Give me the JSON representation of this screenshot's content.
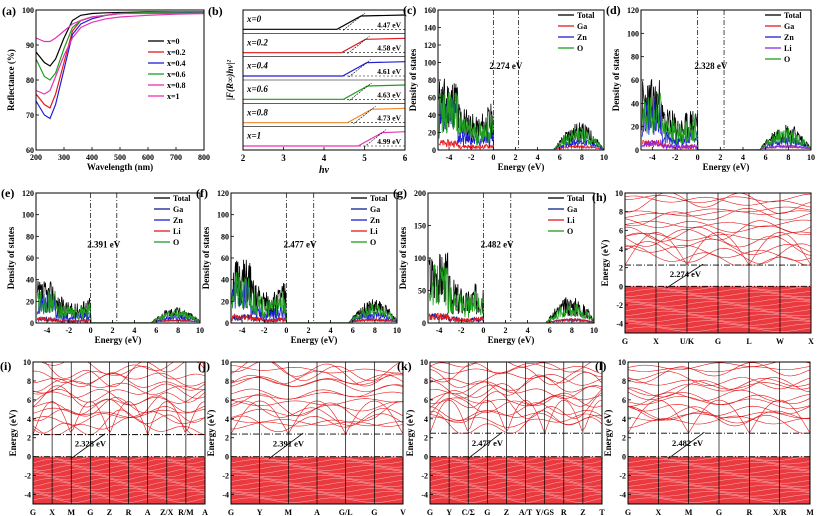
{
  "colors": {
    "black": "#000000",
    "red": "#e41a1c",
    "blue": "#1f1fd6",
    "green": "#1f9e1f",
    "purple": "#8a2be2",
    "magenta": "#e633b5",
    "orange": "#f28c28",
    "navy": "#0b1f8f",
    "gap": "#000000"
  },
  "chart_data": [
    {
      "panel": "a",
      "label": "(a)",
      "type": "line",
      "xlabel": "Wavelength (nm)",
      "ylabel": "Reflectance (%)",
      "xlim": [
        200,
        800
      ],
      "ylim": [
        60,
        100
      ],
      "xticks": [
        200,
        300,
        400,
        500,
        600,
        700,
        800
      ],
      "yticks": [
        60,
        70,
        80,
        90,
        100
      ],
      "x": [
        200,
        230,
        250,
        270,
        300,
        330,
        360,
        400,
        450,
        500,
        600,
        700,
        800
      ],
      "series": [
        {
          "name": "x=0",
          "color": "black",
          "values": [
            88,
            85,
            84,
            86,
            92,
            97,
            98.5,
            99,
            99.2,
            99.3,
            99.5,
            99.5,
            99.5
          ]
        },
        {
          "name": "x=0.2",
          "color": "red",
          "values": [
            76,
            73,
            72,
            76,
            85,
            94,
            97,
            98,
            98.5,
            99,
            99.2,
            99.3,
            99.4
          ]
        },
        {
          "name": "x=0.4",
          "color": "blue",
          "values": [
            74,
            70,
            69,
            73,
            83,
            93,
            96,
            97.5,
            98.5,
            99,
            99.2,
            99.3,
            99.4
          ]
        },
        {
          "name": "x=0.6",
          "color": "green",
          "values": [
            86,
            81,
            80,
            82,
            89,
            95,
            97,
            98,
            98.5,
            99,
            99.3,
            99.4,
            99.5
          ]
        },
        {
          "name": "x=0.8",
          "color": "magenta",
          "values": [
            77,
            76,
            77,
            81,
            87,
            92,
            95,
            96.5,
            97.5,
            98,
            98.5,
            98.8,
            99
          ]
        },
        {
          "name": "x=1",
          "color": "magenta",
          "values": [
            92,
            91,
            91,
            92,
            94,
            96,
            97,
            98,
            98.5,
            99,
            99,
            99,
            99
          ]
        }
      ],
      "legend": [
        "x=0",
        "x=0.2",
        "x=0.4",
        "x=0.6",
        "x=0.8",
        "x=1"
      ]
    },
    {
      "panel": "b",
      "label": "(b)",
      "type": "line",
      "xlabel": "hv",
      "ylabel": "|F(R∞)hv|²",
      "xlim": [
        2,
        6
      ],
      "xticks": [
        2,
        3,
        4,
        5,
        6
      ],
      "rows": [
        {
          "name": "x=0",
          "gap": "4.47 eV",
          "edge": 4.47,
          "color": "black"
        },
        {
          "name": "x=0.2",
          "gap": "4.58 eV",
          "edge": 4.58,
          "color": "red"
        },
        {
          "name": "x=0.4",
          "gap": "4.61 eV",
          "edge": 4.61,
          "color": "blue"
        },
        {
          "name": "x=0.6",
          "gap": "4.63 eV",
          "edge": 4.63,
          "color": "green"
        },
        {
          "name": "x=0.8",
          "gap": "4.73 eV",
          "edge": 4.73,
          "color": "orange"
        },
        {
          "name": "x=1",
          "gap": "4.99 eV",
          "edge": 4.99,
          "color": "magenta"
        }
      ]
    },
    {
      "panel": "c",
      "label": "(c)",
      "type": "line",
      "xlabel": "Energy (eV)",
      "ylabel": "Density of states",
      "xlim": [
        -5,
        10
      ],
      "ylim": [
        0,
        160
      ],
      "xticks": [
        -4,
        -2,
        0,
        2,
        4,
        6,
        8,
        10
      ],
      "yticks": [
        0,
        20,
        40,
        60,
        80,
        100,
        120,
        140,
        160
      ],
      "gap": "2.274 eV",
      "gap_value": 2.274,
      "legend": [
        "Total",
        "Ga",
        "Zn",
        "O"
      ],
      "legend_colors": [
        "black",
        "red",
        "blue",
        "green"
      ],
      "peak": 150
    },
    {
      "panel": "d",
      "label": "(d)",
      "type": "line",
      "xlabel": "Energy (eV)",
      "ylabel": "Density of states",
      "xlim": [
        -5,
        10
      ],
      "ylim": [
        0,
        120
      ],
      "xticks": [
        -4,
        -2,
        0,
        2,
        4,
        6,
        8,
        10
      ],
      "yticks": [
        0,
        20,
        40,
        60,
        80,
        100,
        120
      ],
      "gap": "2.328 eV",
      "gap_value": 2.328,
      "legend": [
        "Total",
        "Ga",
        "Zn",
        "Li",
        "O"
      ],
      "legend_colors": [
        "black",
        "red",
        "blue",
        "purple",
        "green"
      ],
      "peak": 110
    },
    {
      "panel": "e",
      "label": "(e)",
      "type": "line",
      "xlabel": "Energy (eV)",
      "ylabel": "Density of states",
      "xlim": [
        -5,
        10
      ],
      "ylim": [
        0,
        120
      ],
      "xticks": [
        -4,
        -2,
        0,
        2,
        4,
        6,
        8,
        10
      ],
      "yticks": [
        0,
        20,
        40,
        60,
        80,
        100,
        120
      ],
      "gap": "2.391 eV",
      "gap_value": 2.391,
      "legend": [
        "Total",
        "Ga",
        "Zn",
        "Li",
        "O"
      ],
      "legend_colors": [
        "black",
        "navy",
        "blue",
        "red",
        "green"
      ],
      "peak": 70
    },
    {
      "panel": "f",
      "label": "(f)",
      "type": "line",
      "xlabel": "Energy (eV)",
      "ylabel": "Density of states",
      "xlim": [
        -5,
        10
      ],
      "ylim": [
        0,
        120
      ],
      "xticks": [
        -4,
        -2,
        0,
        2,
        4,
        6,
        8,
        10
      ],
      "yticks": [
        0,
        20,
        40,
        60,
        80,
        100,
        120
      ],
      "gap": "2.477 eV",
      "gap_value": 2.477,
      "legend": [
        "Total",
        "Ga",
        "Zn",
        "Li",
        "O"
      ],
      "legend_colors": [
        "black",
        "navy",
        "blue",
        "red",
        "green"
      ],
      "peak": 105
    },
    {
      "panel": "g",
      "label": "(g)",
      "type": "line",
      "xlabel": "Energy (eV)",
      "ylabel": "Density of states",
      "xlim": [
        -5,
        10
      ],
      "ylim": [
        0,
        200
      ],
      "xticks": [
        -4,
        -2,
        0,
        2,
        4,
        6,
        8,
        10
      ],
      "yticks": [
        0,
        50,
        100,
        150,
        200
      ],
      "gap": "2.482 eV",
      "gap_value": 2.482,
      "legend": [
        "Total",
        "Ga",
        "Li",
        "O"
      ],
      "legend_colors": [
        "black",
        "navy",
        "red",
        "green"
      ],
      "peak": 200
    },
    {
      "panel": "h",
      "label": "(h)",
      "type": "bands",
      "ylabel": "Energy (eV)",
      "ylim": [
        -5,
        10
      ],
      "yticks": [
        -4,
        -2,
        0,
        2,
        4,
        6,
        8,
        10
      ],
      "kpoints": [
        "G",
        "X",
        "U/K",
        "G",
        "L",
        "W",
        "X"
      ],
      "gap": "2.274 eV",
      "gap_value": 2.274
    },
    {
      "panel": "i",
      "label": "(i)",
      "type": "bands",
      "ylabel": "Energy (eV)",
      "ylim": [
        -5,
        10
      ],
      "yticks": [
        -4,
        -2,
        0,
        2,
        4,
        6,
        8,
        10
      ],
      "kpoints": [
        "G",
        "X",
        "M",
        "G",
        "Z",
        "R",
        "A",
        "Z/X",
        "R/M",
        "A"
      ],
      "gap": "2.328 eV",
      "gap_value": 2.328
    },
    {
      "panel": "j",
      "label": "(j)",
      "type": "bands",
      "ylabel": "Energy (eV)",
      "ylim": [
        -5,
        10
      ],
      "yticks": [
        -4,
        -2,
        0,
        2,
        4,
        6,
        8,
        10
      ],
      "kpoints": [
        "G",
        "Y",
        "M",
        "A",
        "G/L",
        "G",
        "V"
      ],
      "gap": "2.391 eV",
      "gap_value": 2.391
    },
    {
      "panel": "k",
      "label": "(k)",
      "type": "bands",
      "ylabel": "Energy (eV)",
      "ylim": [
        -5,
        10
      ],
      "yticks": [
        -4,
        -2,
        0,
        2,
        4,
        6,
        8,
        10
      ],
      "kpoints": [
        "G",
        "Y",
        "C/Σ",
        "G",
        "Z",
        "A/T",
        "Y/GS",
        "R",
        "Z",
        "T"
      ],
      "gap": "2.477 eV",
      "gap_value": 2.477
    },
    {
      "panel": "l",
      "label": "(l)",
      "type": "bands",
      "ylabel": "Energy (eV)",
      "ylim": [
        -5,
        10
      ],
      "yticks": [
        -4,
        -2,
        0,
        2,
        4,
        6,
        8,
        10
      ],
      "kpoints": [
        "G",
        "X",
        "M",
        "G",
        "R",
        "X/R",
        "M"
      ],
      "gap": "2.482 eV",
      "gap_value": 2.482
    }
  ]
}
